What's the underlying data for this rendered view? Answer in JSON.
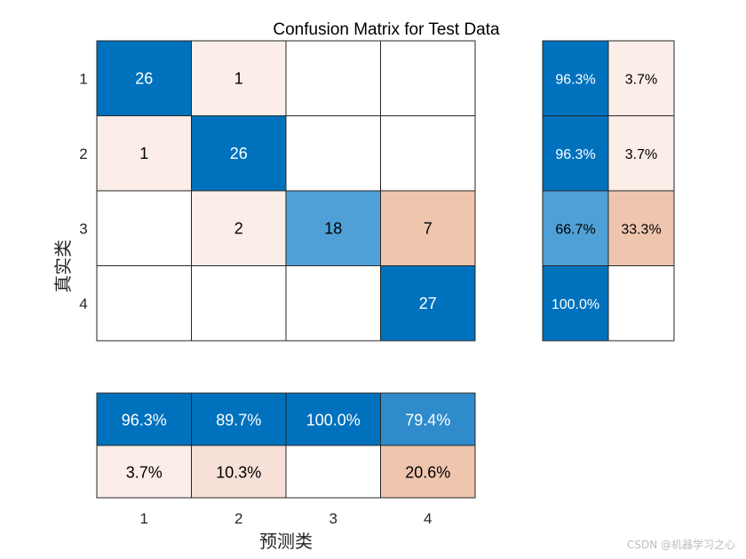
{
  "chart_data": {
    "type": "heatmap",
    "title": "Confusion Matrix for Test Data",
    "xlabel": "预测类",
    "ylabel": "真实类",
    "classes": [
      "1",
      "2",
      "3",
      "4"
    ],
    "matrix": [
      [
        26,
        1,
        null,
        null
      ],
      [
        1,
        26,
        null,
        null
      ],
      [
        null,
        2,
        18,
        7
      ],
      [
        null,
        null,
        null,
        27
      ]
    ],
    "row_summary": [
      [
        "96.3%",
        "3.7%"
      ],
      [
        "96.3%",
        "3.7%"
      ],
      [
        "66.7%",
        "33.3%"
      ],
      [
        "100.0%",
        ""
      ]
    ],
    "column_summary": [
      [
        "96.3%",
        "89.7%",
        "100.0%",
        "79.4%"
      ],
      [
        "3.7%",
        "10.3%",
        "",
        "20.6%"
      ]
    ],
    "colors": {
      "correct_high": "#0072BD",
      "correct_mid": "#4FA0D6",
      "correct_light": "#2F8BCB",
      "error_light": "#FBEDE8",
      "error_mid": "#F6E0D8",
      "error_strong": "#EFC5AE",
      "empty": "#FFFFFF",
      "border": "#262626"
    }
  },
  "watermark": "CSDN @机器学习之心"
}
